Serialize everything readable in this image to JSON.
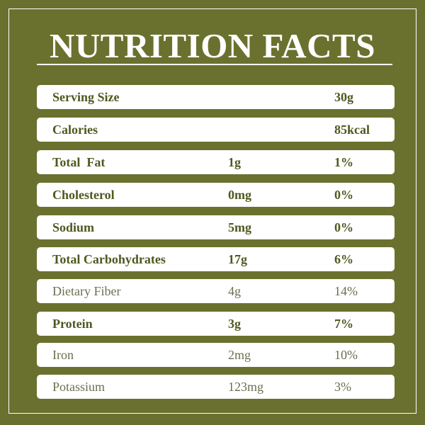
{
  "title": "NUTRITION FACTS",
  "colors": {
    "background": "#6a712e",
    "text": "#4f571f",
    "row": "#ffffff"
  },
  "rows": [
    {
      "name": "Serving Size",
      "amount": "",
      "value": "30g",
      "bold": true
    },
    {
      "name": "Calories",
      "amount": "",
      "value": "85kcal",
      "bold": true
    },
    {
      "name": "Total  Fat",
      "amount": "1g",
      "value": "1%",
      "bold": true
    },
    {
      "name": "Cholesterol",
      "amount": "0mg",
      "value": "0%",
      "bold": true
    },
    {
      "name": "Sodium",
      "amount": "5mg",
      "value": "0%",
      "bold": true
    },
    {
      "name": "Total Carbohydrates",
      "amount": "17g",
      "value": "6%",
      "bold": true
    },
    {
      "name": "Dietary Fiber",
      "amount": "4g",
      "value": "14%",
      "bold": false
    },
    {
      "name": "Protein",
      "amount": "3g",
      "value": "7%",
      "bold": true
    },
    {
      "name": "Iron",
      "amount": "2mg",
      "value": "10%",
      "bold": false
    },
    {
      "name": "Potassium",
      "amount": "123mg",
      "value": "3%",
      "bold": false
    }
  ]
}
